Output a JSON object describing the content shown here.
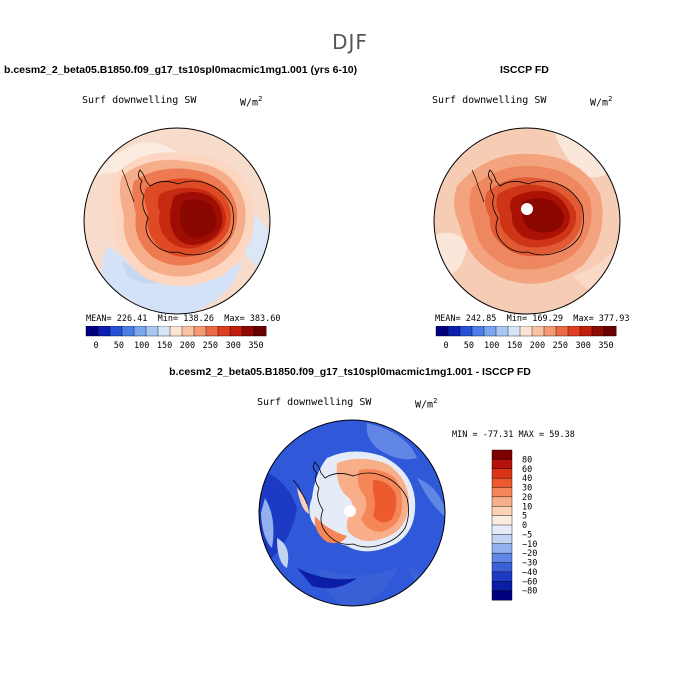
{
  "season": "DJF",
  "top_left": {
    "title": "b.cesm2_2_beta05.B1850.f09_g17_ts10spl0macmic1mg1.001 (yrs 6-10)",
    "variable": "Surf downwelling SW",
    "units": "W/m",
    "units_exp": "2",
    "mean": "MEAN= 226.41",
    "min": "Min= 138.26",
    "max": "Max= 383.60"
  },
  "top_right": {
    "title": "ISCCP FD",
    "variable": "Surf downwelling SW",
    "units": "W/m",
    "units_exp": "2",
    "mean": "MEAN= 242.85",
    "min": "Min= 169.29",
    "max": "Max= 377.93"
  },
  "bottom": {
    "title": "b.cesm2_2_beta05.B1850.f09_g17_ts10spl0macmic1mg1.001 - ISCCP FD",
    "variable": "Surf downwelling SW",
    "units": "W/m",
    "units_exp": "2",
    "minmax": "MIN = -77.31  MAX =  59.38"
  },
  "abs_colorbar": {
    "labels": [
      "0",
      "50",
      "100",
      "150",
      "200",
      "250",
      "300",
      "350"
    ],
    "colors": [
      "#00007f",
      "#0c1fb0",
      "#2552d6",
      "#4a7fe8",
      "#7aa6f0",
      "#a9c7f3",
      "#d6e6f6",
      "#fbe4d4",
      "#f9c3a3",
      "#f39a73",
      "#ec6a45",
      "#de3f20",
      "#c11e0b",
      "#8f0a05",
      "#6a0000"
    ]
  },
  "diff_colorbar": {
    "labels": [
      "80",
      "60",
      "40",
      "30",
      "20",
      "10",
      "5",
      "0",
      "−5",
      "−10",
      "−20",
      "−30",
      "−40",
      "−60",
      "−80"
    ],
    "colors": [
      "#7f0000",
      "#b5120a",
      "#d93318",
      "#ec5a2e",
      "#f48657",
      "#f8ae88",
      "#fbd2b7",
      "#fbece2",
      "#e5ecf7",
      "#c2d4f2",
      "#92b1ee",
      "#6286e5",
      "#3a60d8",
      "#1d3ac4",
      "#0b1ea5",
      "#00007f"
    ]
  }
}
